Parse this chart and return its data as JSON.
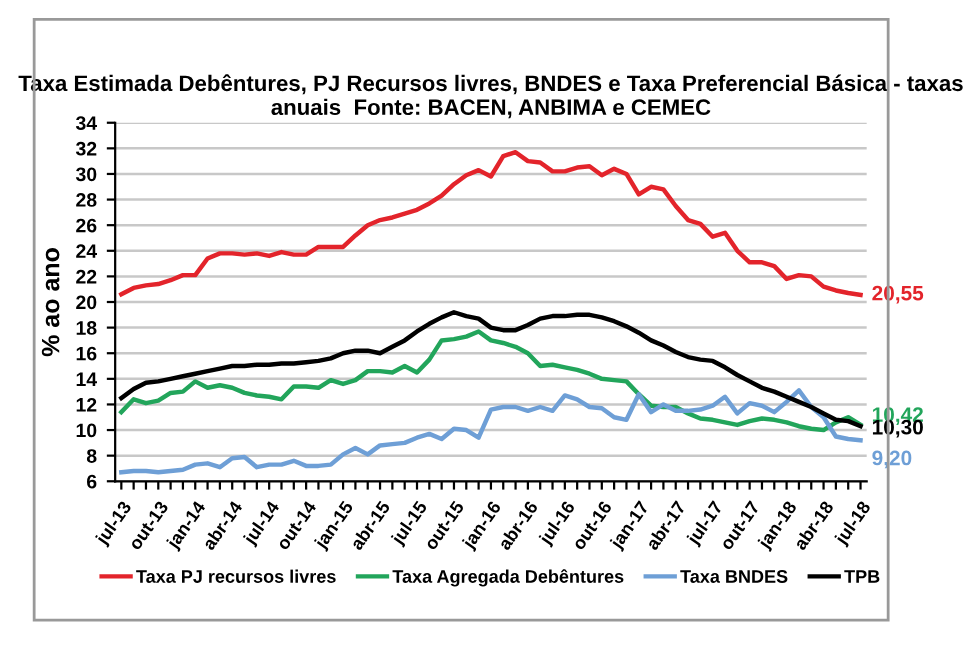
{
  "chart_data": {
    "type": "line",
    "title": "Taxa Estimada Debêntures, PJ Recursos livres, BNDES e Taxa Preferencial Básica - taxas anuais  Fonte: BACEN, ANBIMA e CEMEC",
    "ylabel": "% ao ano",
    "categories": [
      "jul-13",
      null,
      null,
      "out-13",
      null,
      null,
      "jan-14",
      null,
      null,
      "abr-14",
      null,
      null,
      "jul-14",
      null,
      null,
      "out-14",
      null,
      null,
      "jan-15",
      null,
      null,
      "abr-15",
      null,
      null,
      "jul-15",
      null,
      null,
      "out-15",
      null,
      null,
      "jan-16",
      null,
      null,
      "abr-16",
      null,
      null,
      "jul-16",
      null,
      null,
      "out-16",
      null,
      null,
      "jan-17",
      null,
      null,
      "abr-17",
      null,
      null,
      "jul-17",
      null,
      null,
      "out-17",
      null,
      null,
      "jan-18",
      null,
      null,
      "abr-18",
      null,
      null,
      "jul-18"
    ],
    "series": [
      {
        "name": "Taxa PJ recursos livres",
        "color": "#e3242b",
        "values": [
          20.6,
          21.1,
          21.3,
          21.4,
          21.7,
          22.1,
          22.1,
          23.4,
          23.8,
          23.8,
          23.7,
          23.8,
          23.6,
          23.9,
          23.7,
          23.7,
          24.3,
          24.3,
          24.3,
          25.2,
          26.0,
          26.4,
          26.6,
          26.9,
          27.2,
          27.7,
          28.3,
          29.2,
          29.9,
          30.3,
          29.8,
          31.4,
          31.7,
          31.0,
          30.9,
          30.2,
          30.2,
          30.5,
          30.6,
          29.9,
          30.4,
          30.0,
          28.4,
          29.0,
          28.8,
          27.5,
          26.4,
          26.1,
          25.1,
          25.4,
          24.0,
          23.1,
          23.1,
          22.8,
          21.8,
          22.1,
          22.0,
          21.2,
          20.9,
          20.7,
          20.55
        ]
      },
      {
        "name": "Taxa Agregada Debêntures",
        "color": "#22a55b",
        "values": [
          11.4,
          12.4,
          12.1,
          12.3,
          12.9,
          13.0,
          13.8,
          13.3,
          13.5,
          13.3,
          12.9,
          12.7,
          12.6,
          12.4,
          13.4,
          13.4,
          13.3,
          13.9,
          13.6,
          13.9,
          14.6,
          14.6,
          14.5,
          15.0,
          14.5,
          15.5,
          17.0,
          17.1,
          17.3,
          17.7,
          17.0,
          16.8,
          16.5,
          16.0,
          15.0,
          15.1,
          14.9,
          14.7,
          14.4,
          14.0,
          13.9,
          13.8,
          12.8,
          11.9,
          11.8,
          11.8,
          11.3,
          10.9,
          10.8,
          10.6,
          10.4,
          10.7,
          10.9,
          10.8,
          10.6,
          10.3,
          10.1,
          10.0,
          10.6,
          11.0,
          10.42
        ]
      },
      {
        "name": "Taxa BNDES",
        "color": "#6e9fd6",
        "values": [
          6.7,
          6.8,
          6.8,
          6.7,
          6.8,
          6.9,
          7.3,
          7.4,
          7.1,
          7.8,
          7.9,
          7.1,
          7.3,
          7.3,
          7.6,
          7.2,
          7.2,
          7.3,
          8.1,
          8.6,
          8.1,
          8.8,
          8.9,
          9.0,
          9.4,
          9.7,
          9.3,
          10.1,
          10.0,
          9.4,
          11.6,
          11.8,
          11.8,
          11.5,
          11.8,
          11.5,
          12.7,
          12.4,
          11.8,
          11.7,
          11.0,
          10.8,
          12.8,
          11.4,
          12.0,
          11.5,
          11.5,
          11.6,
          11.9,
          12.6,
          11.3,
          12.1,
          11.9,
          11.4,
          12.2,
          13.1,
          11.8,
          11.0,
          9.5,
          9.3,
          9.2
        ]
      },
      {
        "name": "TPB",
        "color": "#000000",
        "values": [
          12.5,
          13.2,
          13.7,
          13.8,
          14.0,
          14.2,
          14.4,
          14.6,
          14.8,
          15.0,
          15.0,
          15.1,
          15.1,
          15.2,
          15.2,
          15.3,
          15.4,
          15.6,
          16.0,
          16.2,
          16.2,
          16.0,
          16.5,
          17.0,
          17.7,
          18.3,
          18.8,
          19.2,
          18.9,
          18.7,
          18.0,
          17.8,
          17.8,
          18.2,
          18.7,
          18.9,
          18.9,
          19.0,
          19.0,
          18.8,
          18.5,
          18.1,
          17.6,
          17.0,
          16.6,
          16.1,
          15.7,
          15.5,
          15.4,
          14.9,
          14.3,
          13.8,
          13.3,
          13.0,
          12.6,
          12.2,
          11.8,
          11.3,
          10.8,
          10.7,
          10.3
        ]
      }
    ],
    "annotations": [
      {
        "text": "20,55",
        "x": "jul-18",
        "y": 20.55
      },
      {
        "text": "10,42",
        "x": "jul-18",
        "y": 10.42
      },
      {
        "text": "9,20",
        "x": "jul-18",
        "y": 9.2
      },
      {
        "text": "10,30",
        "x": "jul-18",
        "y": 10.3
      }
    ],
    "ylim": [
      6,
      34
    ],
    "yticks": [
      6,
      8,
      10,
      12,
      14,
      16,
      18,
      20,
      22,
      24,
      26,
      28,
      30,
      32,
      34
    ],
    "grid": "y",
    "legend": "bottom",
    "marker": "none",
    "line_style": "solid"
  }
}
